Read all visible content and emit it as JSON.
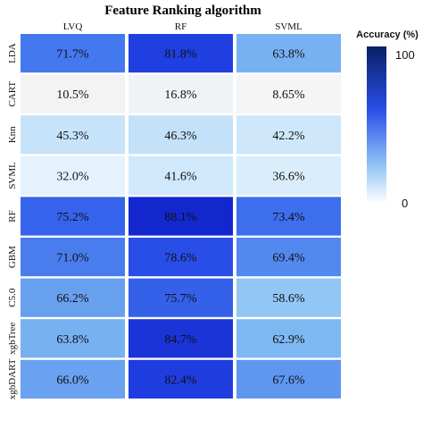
{
  "chart_data": {
    "type": "heatmap",
    "title": "Feature Ranking algorithm",
    "columns": [
      "LVQ",
      "RF",
      "SVML"
    ],
    "rows": [
      "LDA",
      "CART",
      "Knn",
      "SVML",
      "RF",
      "GBM",
      "C5.0",
      "xgbTree",
      "xgbDART"
    ],
    "values": [
      [
        71.7,
        81.8,
        63.8
      ],
      [
        10.5,
        16.8,
        8.65
      ],
      [
        45.3,
        46.3,
        42.2
      ],
      [
        32.0,
        41.6,
        36.6
      ],
      [
        75.2,
        88.1,
        73.4
      ],
      [
        71.0,
        78.6,
        69.4
      ],
      [
        66.2,
        75.7,
        58.6
      ],
      [
        63.8,
        84.7,
        62.9
      ],
      [
        66.0,
        82.4,
        67.6
      ]
    ],
    "cell_labels": [
      [
        "71.7%",
        "81.8%",
        "63.8%"
      ],
      [
        "10.5%",
        "16.8%",
        "8.65%"
      ],
      [
        "45.3%",
        "46.3%",
        "42.2%"
      ],
      [
        "32.0%",
        "41.6%",
        "36.6%"
      ],
      [
        "75.2%",
        "88.1%",
        "73.4%"
      ],
      [
        "71.0%",
        "78.6%",
        "69.4%"
      ],
      [
        "66.2%",
        "75.7%",
        "58.6%"
      ],
      [
        "63.8%",
        "84.7%",
        "62.9%"
      ],
      [
        "66.0%",
        "82.4%",
        "67.6%"
      ]
    ],
    "colorbar": {
      "title": "Accuracy (%)",
      "min": 0,
      "max": 100,
      "tick_labels": [
        "100",
        "0"
      ],
      "color_low": "#ffffff",
      "color_high": "#0a1f63"
    }
  }
}
